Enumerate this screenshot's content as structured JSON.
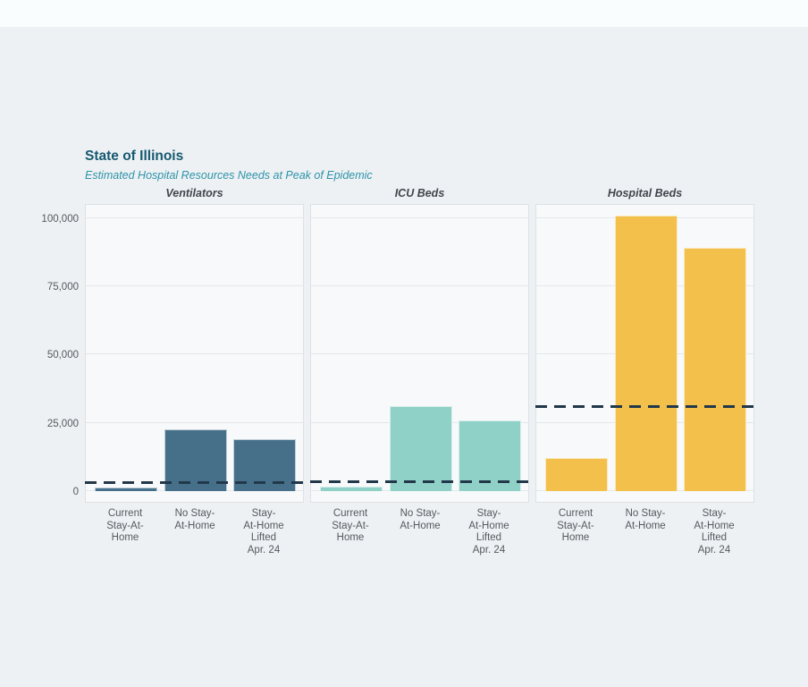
{
  "page": {
    "background_color": "#edf1f4",
    "topbar_color": "#fafdfd"
  },
  "chart_data": {
    "type": "bar",
    "title": "State of Illinois",
    "subtitle": "Estimated Hospital Resources Needs at Peak of Epidemic",
    "categories": [
      "Current Stay-At-Home",
      "No Stay-At-Home",
      "Stay-At-Home Lifted Apr. 24"
    ],
    "category_label_lines": [
      [
        "Current",
        "Stay-At-",
        "Home"
      ],
      [
        "No Stay-",
        "At-Home"
      ],
      [
        "Stay-",
        "At-Home",
        "Lifted",
        "Apr. 24"
      ]
    ],
    "y_axis": {
      "ticks": [
        0,
        25000,
        50000,
        75000,
        100000
      ],
      "tick_labels": [
        "0",
        "25,000",
        "50,000",
        "75,000",
        "100,000"
      ],
      "max": 105500,
      "ylim": [
        0,
        105500
      ]
    },
    "grid": true,
    "legend_position": "none",
    "panels": [
      {
        "title": "Ventilators",
        "bar_color": "#46708a",
        "values": [
          1400,
          22500,
          19000
        ],
        "capacity_line": 3200
      },
      {
        "title": "ICU Beds",
        "bar_color": "#8fd0c7",
        "values": [
          1600,
          31000,
          26000
        ],
        "capacity_line": 3400
      },
      {
        "title": "Hospital Beds",
        "bar_color": "#f3c04b",
        "values": [
          12000,
          101000,
          89000
        ],
        "capacity_line": 31000
      }
    ],
    "capacity_line_color": "#22384a",
    "panel_background": "#f7f9fa",
    "title_color": "#175970",
    "subtitle_color": "#2e93a8"
  }
}
